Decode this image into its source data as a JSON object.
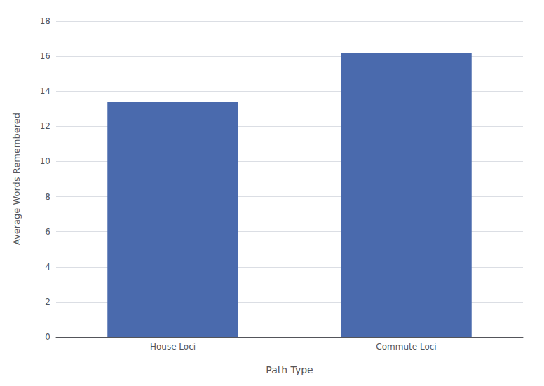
{
  "chart_data": {
    "type": "bar",
    "categories": [
      "House Loci",
      "Commute Loci"
    ],
    "values": [
      13.4,
      16.2
    ],
    "color": "#4a6aad",
    "xlabel": "Path Type",
    "ylabel": "Average Words Remembered",
    "ylim": [
      0,
      18
    ],
    "yticks": [
      0,
      2,
      4,
      6,
      8,
      10,
      12,
      14,
      16,
      18
    ],
    "grid": true
  }
}
